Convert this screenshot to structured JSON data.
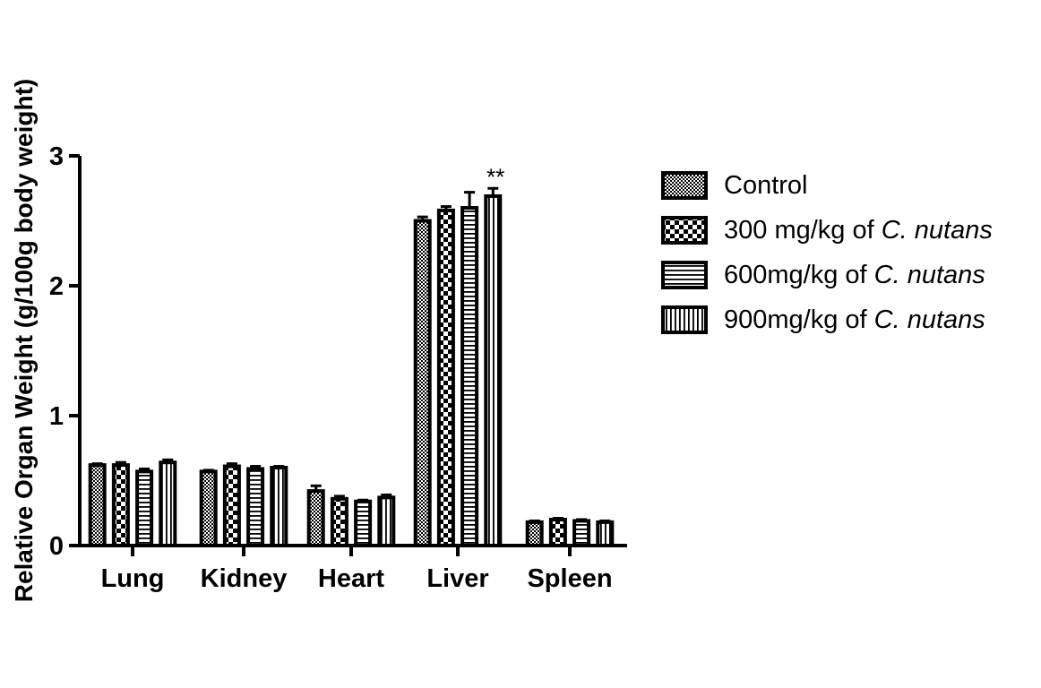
{
  "chart_data": {
    "type": "bar",
    "ylabel": "Relative Organ Weight (g/100g body weight)",
    "xlabel": "",
    "ylim": [
      0,
      3
    ],
    "yticks": [
      "0",
      "1",
      "2",
      "3"
    ],
    "categories": [
      "Lung",
      "Kidney",
      "Heart",
      "Liver",
      "Spleen"
    ],
    "series": [
      {
        "name": "Control",
        "name_prefix": "Control",
        "name_italic": "",
        "pattern": "dots",
        "values": [
          0.62,
          0.57,
          0.42,
          2.5,
          0.18
        ],
        "errors": [
          0.01,
          0.01,
          0.04,
          0.03,
          0.01
        ]
      },
      {
        "name": "300 mg/kg of C. nutans",
        "name_prefix": "300 mg/kg of ",
        "name_italic": "C. nutans",
        "pattern": "checker",
        "values": [
          0.62,
          0.61,
          0.36,
          2.58,
          0.2
        ],
        "errors": [
          0.02,
          0.02,
          0.02,
          0.03,
          0.01
        ]
      },
      {
        "name": "600mg/kg of C. nutans",
        "name_prefix": "600mg/kg of ",
        "name_italic": "C. nutans",
        "pattern": "hlines",
        "values": [
          0.57,
          0.59,
          0.34,
          2.6,
          0.19
        ],
        "errors": [
          0.02,
          0.02,
          0.01,
          0.12,
          0.01
        ]
      },
      {
        "name": "900mg/kg of C. nutans",
        "name_prefix": "900mg/kg of ",
        "name_italic": "C. nutans",
        "pattern": "vlines",
        "values": [
          0.64,
          0.6,
          0.37,
          2.69,
          0.18
        ],
        "errors": [
          0.02,
          0.01,
          0.02,
          0.06,
          0.01
        ]
      }
    ],
    "annotations": [
      {
        "category": "Liver",
        "series_index": 3,
        "text": "**"
      }
    ],
    "legend_position": "right",
    "grid": false
  }
}
